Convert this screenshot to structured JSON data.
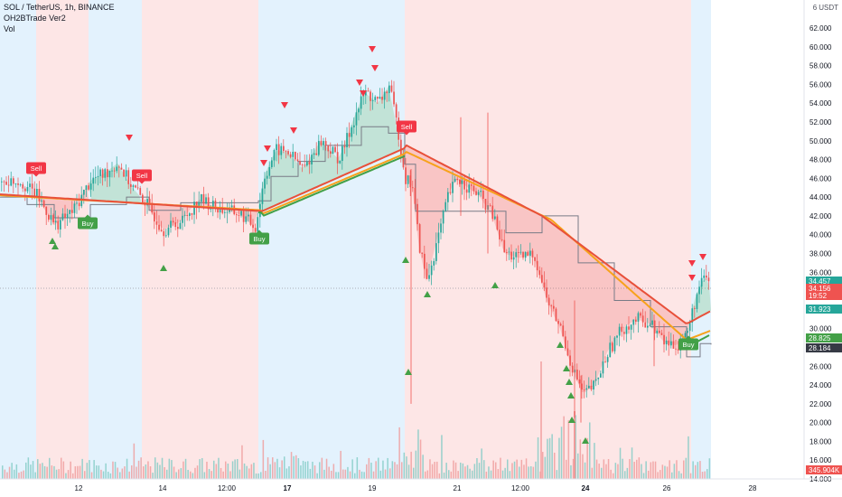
{
  "header": {
    "symbol_line": "SOL / TetherUS, 1h, BINANCE",
    "indicator_line": "OH2BTrade Ver2",
    "volume_line": "Vol"
  },
  "price_axis": {
    "currency": "USDT",
    "top_label": "6",
    "ticks": [
      "62.000",
      "60.000",
      "58.000",
      "56.000",
      "54.000",
      "52.000",
      "50.000",
      "48.000",
      "46.000",
      "44.000",
      "42.000",
      "40.000",
      "38.000",
      "36.000",
      "34.000",
      "32.000",
      "30.000",
      "28.000",
      "26.000",
      "24.000",
      "22.000",
      "20.000",
      "18.000",
      "16.000",
      "14.000"
    ]
  },
  "price_tags": [
    {
      "label": "34.457",
      "color": "#26a69a",
      "value": 34.457
    },
    {
      "label": "34.156",
      "color": "#ef5350",
      "value": 34.156
    },
    {
      "label": "19:52",
      "color": "#ef5350",
      "value": 33.2
    },
    {
      "label": "31.923",
      "color": "#26a69a",
      "value": 31.4
    },
    {
      "label": "28.825",
      "color": "#43a047",
      "value": 28.825
    },
    {
      "label": "28.184",
      "color": "#363a45",
      "value": 27.7
    },
    {
      "label": "345.904K",
      "color": "#ef5350",
      "value": 13.3
    }
  ],
  "time_axis": {
    "ticks": [
      {
        "label": "12",
        "bold": false
      },
      {
        "label": "14",
        "bold": false
      },
      {
        "label": "12:00",
        "bold": false
      },
      {
        "label": "17",
        "bold": true
      },
      {
        "label": "19",
        "bold": false
      },
      {
        "label": "21",
        "bold": false
      },
      {
        "label": "12:00",
        "bold": false
      },
      {
        "label": "24",
        "bold": true
      },
      {
        "label": "26",
        "bold": false
      },
      {
        "label": "28",
        "bold": false
      }
    ]
  },
  "signals": [
    {
      "type": "Sell",
      "label": "Sell",
      "color": "#f23645"
    },
    {
      "type": "Sell",
      "label": "Sell",
      "color": "#f23645"
    },
    {
      "type": "Sell",
      "label": "Sell",
      "color": "#f23645"
    },
    {
      "type": "Buy",
      "label": "Buy",
      "color": "#43a047"
    },
    {
      "type": "Buy",
      "label": "Buy",
      "color": "#43a047"
    },
    {
      "type": "Buy",
      "label": "Buy",
      "color": "#43a047"
    }
  ],
  "colors": {
    "bg_blue": "#e3f2fd",
    "bg_red": "#fde6e6",
    "up": "#26a69a",
    "down": "#ef5350",
    "ema_red": "#e8503a",
    "ema_orange": "#f7a21b",
    "ema_green": "#43a047",
    "step_line": "#787b86"
  }
}
